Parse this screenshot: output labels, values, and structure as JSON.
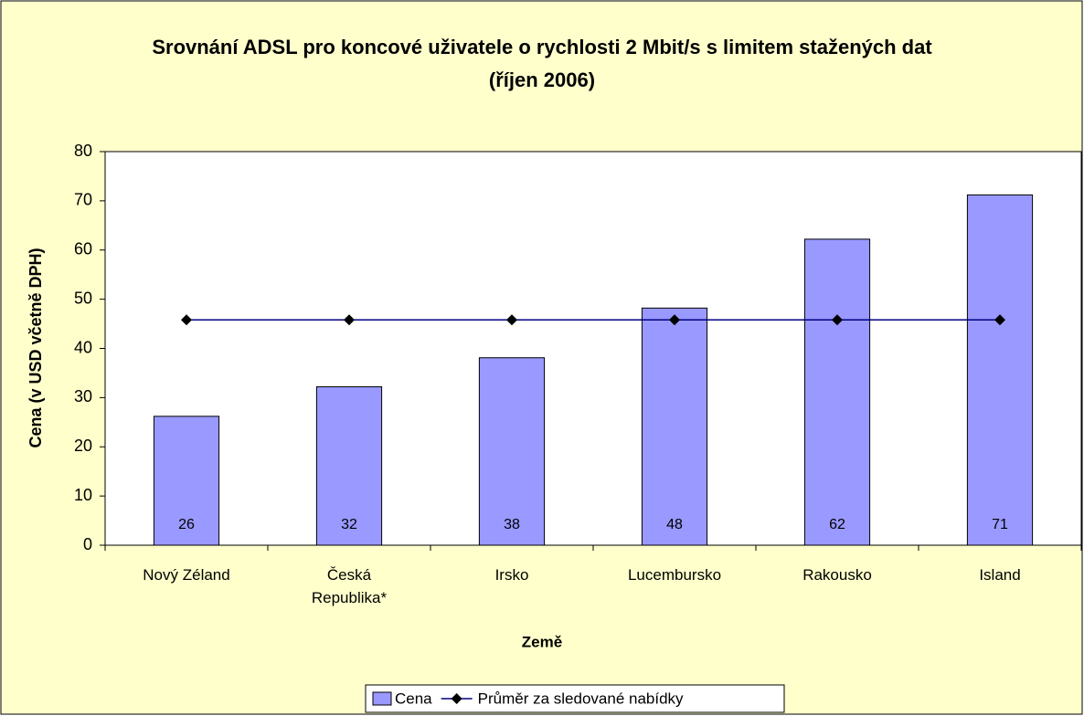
{
  "chart_data": {
    "type": "bar",
    "title": "Srovnání ADSL pro koncové uživatele o rychlosti 2 Mbit/s s limitem stažených dat (říjen 2006)",
    "xlabel": "Země",
    "ylabel": "Cena (v USD včetně DPH)",
    "categories": [
      "Nový Zéland",
      "Česká Republika*",
      "Irsko",
      "Lucembursko",
      "Rakousko",
      "Island"
    ],
    "series": [
      {
        "name": "Cena",
        "type": "bar",
        "color": "#9999ff",
        "values": [
          26.2,
          32.2,
          38.1,
          48.2,
          62.2,
          71.2
        ],
        "value_labels": [
          "26",
          "32",
          "38",
          "48",
          "62",
          "71"
        ]
      },
      {
        "name": "Průměr za sledované nabídky",
        "type": "line",
        "color": "#000080",
        "values": [
          45.8,
          45.8,
          45.8,
          45.8,
          45.8,
          45.8
        ]
      }
    ],
    "ylim": [
      0,
      80
    ],
    "yticks": [
      0,
      10,
      20,
      30,
      40,
      50,
      60,
      70,
      80
    ],
    "grid": false,
    "legend": "bottom"
  }
}
